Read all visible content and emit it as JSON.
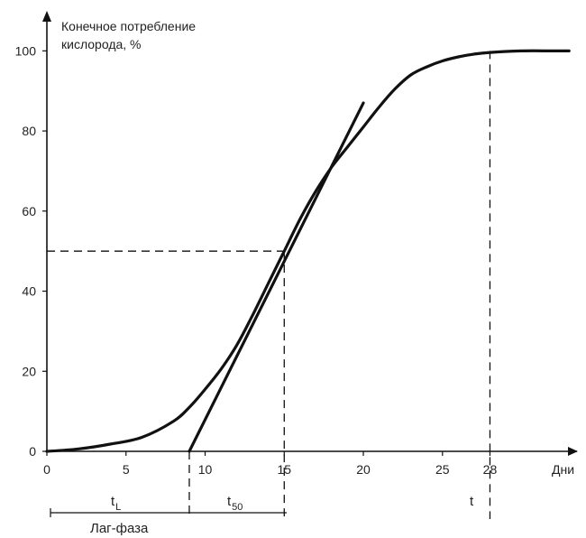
{
  "chart_data": {
    "type": "line",
    "ylabel_line1": "Конечное потребление",
    "ylabel_line2": "кислорода, %",
    "xlabel": "Дни",
    "xlim": [
      0,
      33.5
    ],
    "ylim": [
      0,
      110
    ],
    "x_ticks": [
      0,
      5,
      10,
      15,
      20,
      25,
      28
    ],
    "y_ticks": [
      0,
      20,
      40,
      60,
      80,
      100
    ],
    "grid": false,
    "series": [
      {
        "x": [
          0,
          2,
          4,
          6,
          8,
          9,
          10,
          11,
          12,
          13,
          14,
          15,
          16,
          17,
          18,
          19,
          20,
          21,
          22,
          23,
          24,
          25,
          26,
          27,
          28,
          30,
          32,
          33
        ],
        "y": [
          0,
          0.6,
          1.8,
          3.5,
          7.5,
          11,
          15.5,
          20.5,
          26.5,
          34,
          42,
          50,
          58,
          65,
          71,
          76,
          81,
          86,
          90.5,
          94,
          96,
          97.5,
          98.5,
          99.2,
          99.6,
          100,
          100,
          100
        ]
      }
    ],
    "tangent_line": {
      "x": [
        9,
        20
      ],
      "y": [
        0,
        87
      ]
    },
    "reference_lines": {
      "y50": 50,
      "x_t50": 15,
      "x_t": 28,
      "y_t": 100,
      "x_tL": 9
    },
    "annotations": {
      "tL": "t",
      "tL_sub": "L",
      "t50": "t",
      "t50_sub": "50",
      "t": "t",
      "lag_phase": "Лаг-фаза"
    }
  }
}
